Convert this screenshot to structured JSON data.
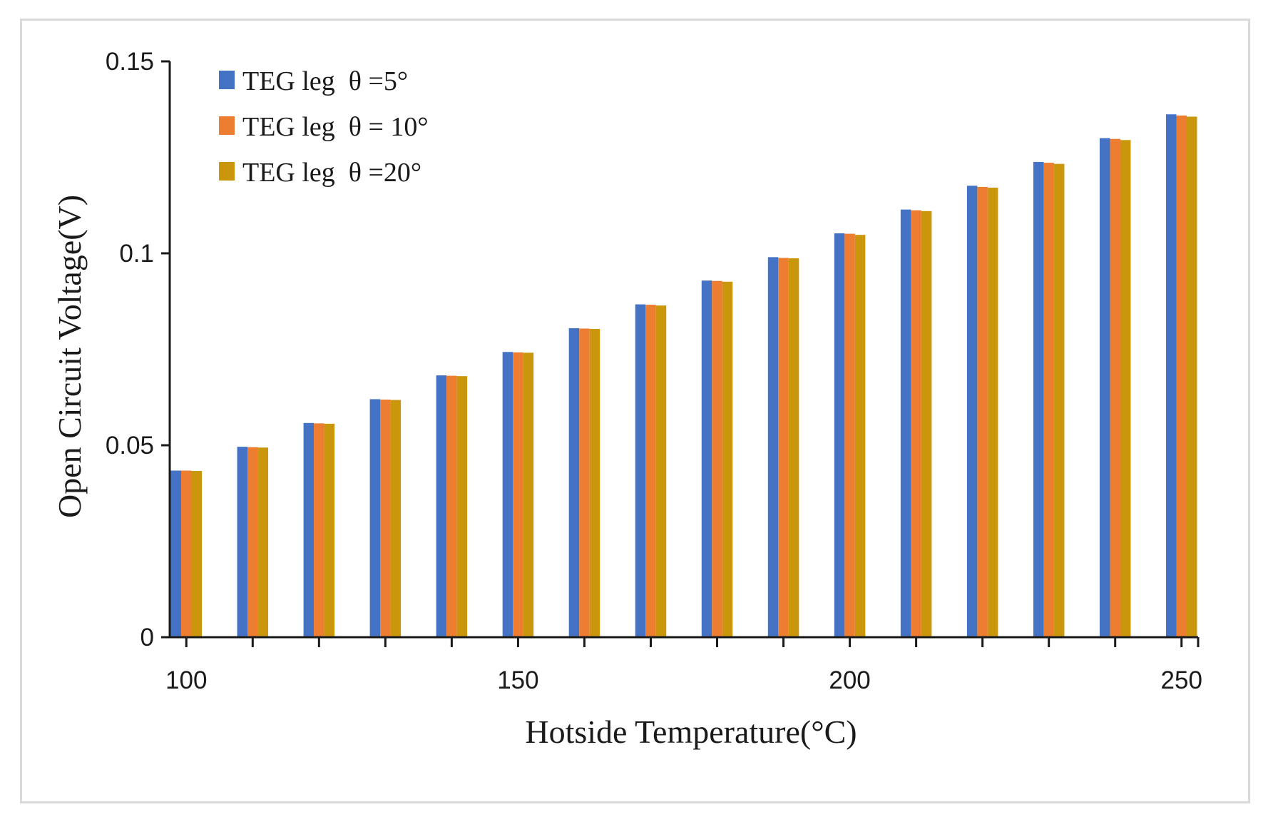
{
  "chart_data": {
    "type": "bar",
    "title": "",
    "xlabel": "Hotside Temperature(°C)",
    "ylabel": "Open Circuit Voltage(V)",
    "ylim": [
      0,
      0.15
    ],
    "xlim": [
      97.5,
      252.5
    ],
    "x_ticks": [
      100,
      150,
      200,
      250
    ],
    "x_tick_labels": [
      "100",
      "150",
      "200",
      "250"
    ],
    "y_ticks": [
      0,
      0.05,
      0.1,
      0.15
    ],
    "y_tick_labels": [
      "0",
      "0.05",
      "0.1",
      "0.15"
    ],
    "grid": false,
    "legend_position": "top-left",
    "categories": [
      100,
      110,
      120,
      130,
      140,
      150,
      160,
      170,
      180,
      190,
      200,
      210,
      220,
      230,
      240,
      250
    ],
    "series": [
      {
        "name": "TEG leg  θ =5°",
        "color": "#4472C4",
        "values": [
          0.0434,
          0.0496,
          0.0558,
          0.062,
          0.0682,
          0.0743,
          0.0805,
          0.0867,
          0.0929,
          0.099,
          0.1052,
          0.1114,
          0.1176,
          0.1238,
          0.13,
          0.1362
        ]
      },
      {
        "name": "TEG leg  θ = 10°",
        "color": "#ED7D31",
        "values": [
          0.0434,
          0.0495,
          0.0557,
          0.0619,
          0.0681,
          0.0742,
          0.0804,
          0.0866,
          0.0928,
          0.0988,
          0.1051,
          0.1112,
          0.1173,
          0.1236,
          0.1298,
          0.1359
        ]
      },
      {
        "name": "TEG leg  θ =20°",
        "color": "#C9960C",
        "values": [
          0.0433,
          0.0494,
          0.0556,
          0.0618,
          0.068,
          0.0741,
          0.0803,
          0.0864,
          0.0926,
          0.0987,
          0.1048,
          0.111,
          0.1171,
          0.1233,
          0.1295,
          0.1356
        ]
      }
    ]
  }
}
